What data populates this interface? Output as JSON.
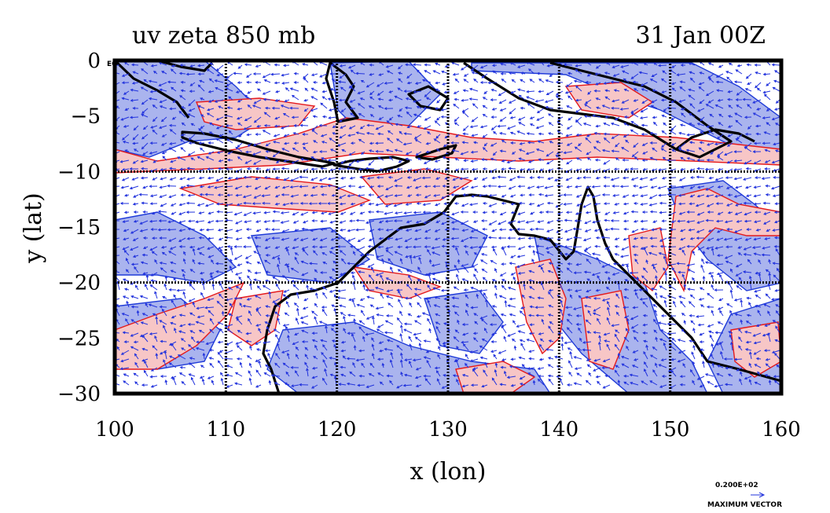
{
  "header": {
    "title_left": "uv zeta 850 mb",
    "title_right": "31 Jan 00Z"
  },
  "corner_label": "EQ",
  "chart_data": {
    "type": "map",
    "title": "uv zeta 850 mb",
    "time": "31 Jan 00Z",
    "xlabel": "x (lon)",
    "ylabel": "y (lat)",
    "xlim": [
      100,
      160
    ],
    "ylim": [
      -30,
      0
    ],
    "xticks": [
      100,
      110,
      120,
      130,
      140,
      150,
      160
    ],
    "yticks": [
      0,
      -5,
      -10,
      -15,
      -20,
      -25,
      -30
    ],
    "xtick_labels": [
      "100",
      "110",
      "120",
      "130",
      "140",
      "150",
      "160"
    ],
    "ytick_labels": [
      "0",
      "−5",
      "−10",
      "−15",
      "−20",
      "−25",
      "−30"
    ],
    "gridlines_lon": [
      110,
      120,
      130,
      140,
      150
    ],
    "gridlines_lat": [
      -10,
      -20
    ],
    "fields": {
      "positive_vorticity_color": "#f7c6c6",
      "positive_contour_color": "#e41a1c",
      "negative_vorticity_color": "#aab4ee",
      "negative_contour_color": "#1f3bd8",
      "vector_color": "#2233dd",
      "coastline_color": "#000000"
    }
  },
  "vector_key": {
    "value": "0.200E+02",
    "label": "MAXIMUM VECTOR"
  },
  "colors": {
    "background": "#ffffff",
    "frame": "#000000"
  }
}
